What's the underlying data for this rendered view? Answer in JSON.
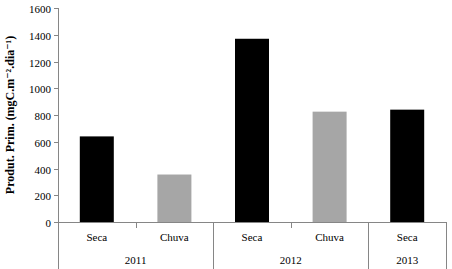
{
  "chart_data": {
    "type": "bar",
    "y_label": "Produt. Prim. (mgC.m⁻².dia⁻¹)",
    "categories": [
      "Seca",
      "Chuva",
      "Seca",
      "Chuva",
      "Seca"
    ],
    "category_groups": [
      "2011",
      "2011",
      "2012",
      "2012",
      "2013"
    ],
    "values": [
      640,
      355,
      1370,
      825,
      840
    ],
    "colors": [
      "#000000",
      "#a6a6a6",
      "#000000",
      "#a6a6a6",
      "#000000"
    ],
    "ylim": [
      0,
      1600
    ],
    "yticks": [
      0,
      200,
      400,
      600,
      800,
      1000,
      1200,
      1400,
      1600
    ],
    "grid": false
  }
}
